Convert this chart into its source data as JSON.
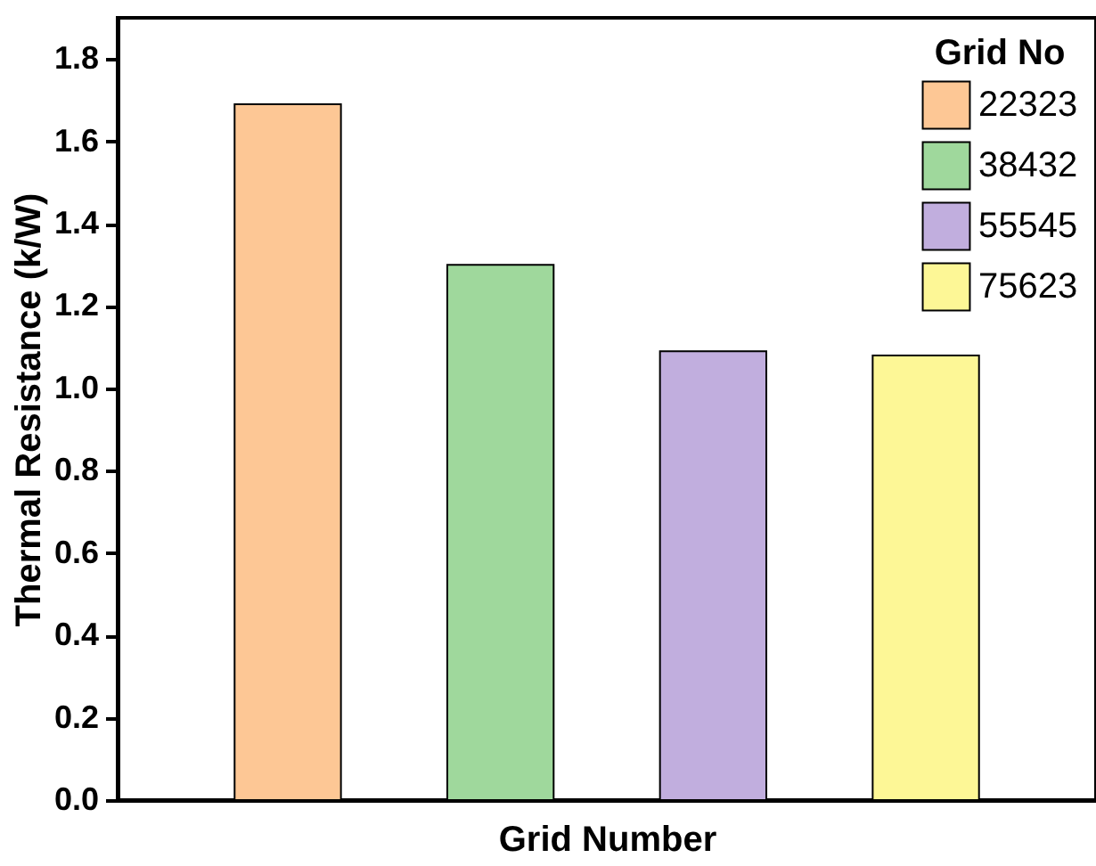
{
  "chart_data": {
    "type": "bar",
    "xlabel": "Grid Number",
    "ylabel": "Thermal Resistance (k/W)",
    "legend_title": "Grid No",
    "categories": [
      null,
      null,
      null,
      null
    ],
    "series": [
      {
        "name": "22323",
        "color": "#fdc795",
        "values": [
          1.69,
          null,
          null,
          null
        ]
      },
      {
        "name": "38432",
        "color": "#9fd89c",
        "values": [
          null,
          1.3,
          null,
          null
        ]
      },
      {
        "name": "55545",
        "color": "#c1aede",
        "values": [
          null,
          null,
          1.09,
          null
        ]
      },
      {
        "name": "75623",
        "color": "#fdf796",
        "values": [
          null,
          null,
          null,
          1.08
        ]
      }
    ],
    "ylim": [
      0,
      1.9
    ],
    "yticks": [
      {
        "value": 0,
        "label": "0.0"
      },
      0.2,
      0.4,
      0.6,
      0.8,
      {
        "value": 1,
        "label": "1.0"
      },
      1.2,
      1.4,
      1.6,
      1.8
    ],
    "legend": "top right",
    "tick_labels": "y",
    "grid": false
  }
}
